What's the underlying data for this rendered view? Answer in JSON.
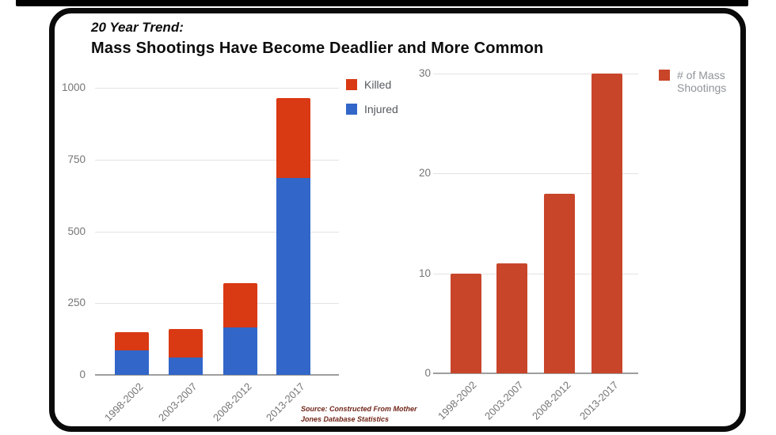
{
  "page": {
    "background": "#ffffff",
    "frame_color": "#000000"
  },
  "title": {
    "line1": "20 Year Trend:",
    "line2": "Mass Shootings Have Become Deadlier and More Common"
  },
  "source": {
    "line1": "Source:  Constructed  From Mother",
    "line2": "Jones Database Statistics"
  },
  "chart_data": [
    {
      "type": "bar",
      "stacked": true,
      "title": "",
      "categories": [
        "1998-2002",
        "2003-2007",
        "2008-2012",
        "2013-2017"
      ],
      "series": [
        {
          "name": "Killed",
          "color": "#d93913",
          "values": [
            65,
            100,
            155,
            280
          ]
        },
        {
          "name": "Injured",
          "color": "#3266c8",
          "values": [
            85,
            60,
            165,
            685
          ]
        }
      ],
      "stack_totals": [
        150,
        160,
        320,
        965
      ],
      "xlabel": "",
      "ylabel": "",
      "ylim": [
        0,
        1000
      ],
      "yticks": [
        0,
        250,
        500,
        750,
        1000
      ],
      "grid": true,
      "legend_position": "right-top"
    },
    {
      "type": "bar",
      "stacked": false,
      "title": "",
      "categories": [
        "1998-2002",
        "2003-2007",
        "2008-2012",
        "2013-2017"
      ],
      "series": [
        {
          "name": "# of Mass Shootings",
          "color": "#c8452a",
          "values": [
            10,
            11,
            18,
            30
          ]
        }
      ],
      "xlabel": "",
      "ylabel": "",
      "ylim": [
        0,
        30
      ],
      "yticks": [
        0,
        10,
        20,
        30
      ],
      "grid": true,
      "legend_position": "right-top"
    }
  ]
}
